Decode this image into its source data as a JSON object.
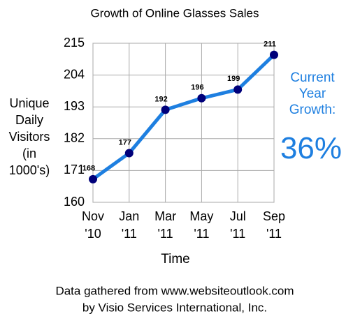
{
  "chart_data": {
    "type": "line",
    "title": "Growth of Online Glasses Sales",
    "x_label": "Time",
    "y_label": "Unique Daily Visitors (in 1000's)",
    "categories": [
      "Nov '10",
      "Jan '11",
      "Mar '11",
      "May '11",
      "Jul '11",
      "Sep '11"
    ],
    "values": [
      168,
      177,
      192,
      196,
      199,
      211
    ],
    "color": "#1e7fe0",
    "marker_color": "#00007a",
    "ylim": [
      160,
      215
    ],
    "yticks": [
      160,
      171,
      182,
      193,
      204,
      215
    ],
    "grid": true,
    "annotation": {
      "label": "Current Year Growth:",
      "value": "36%"
    },
    "source": [
      "Data gathered from www.websiteoutlook.com",
      "by Visio Services International, Inc."
    ]
  }
}
